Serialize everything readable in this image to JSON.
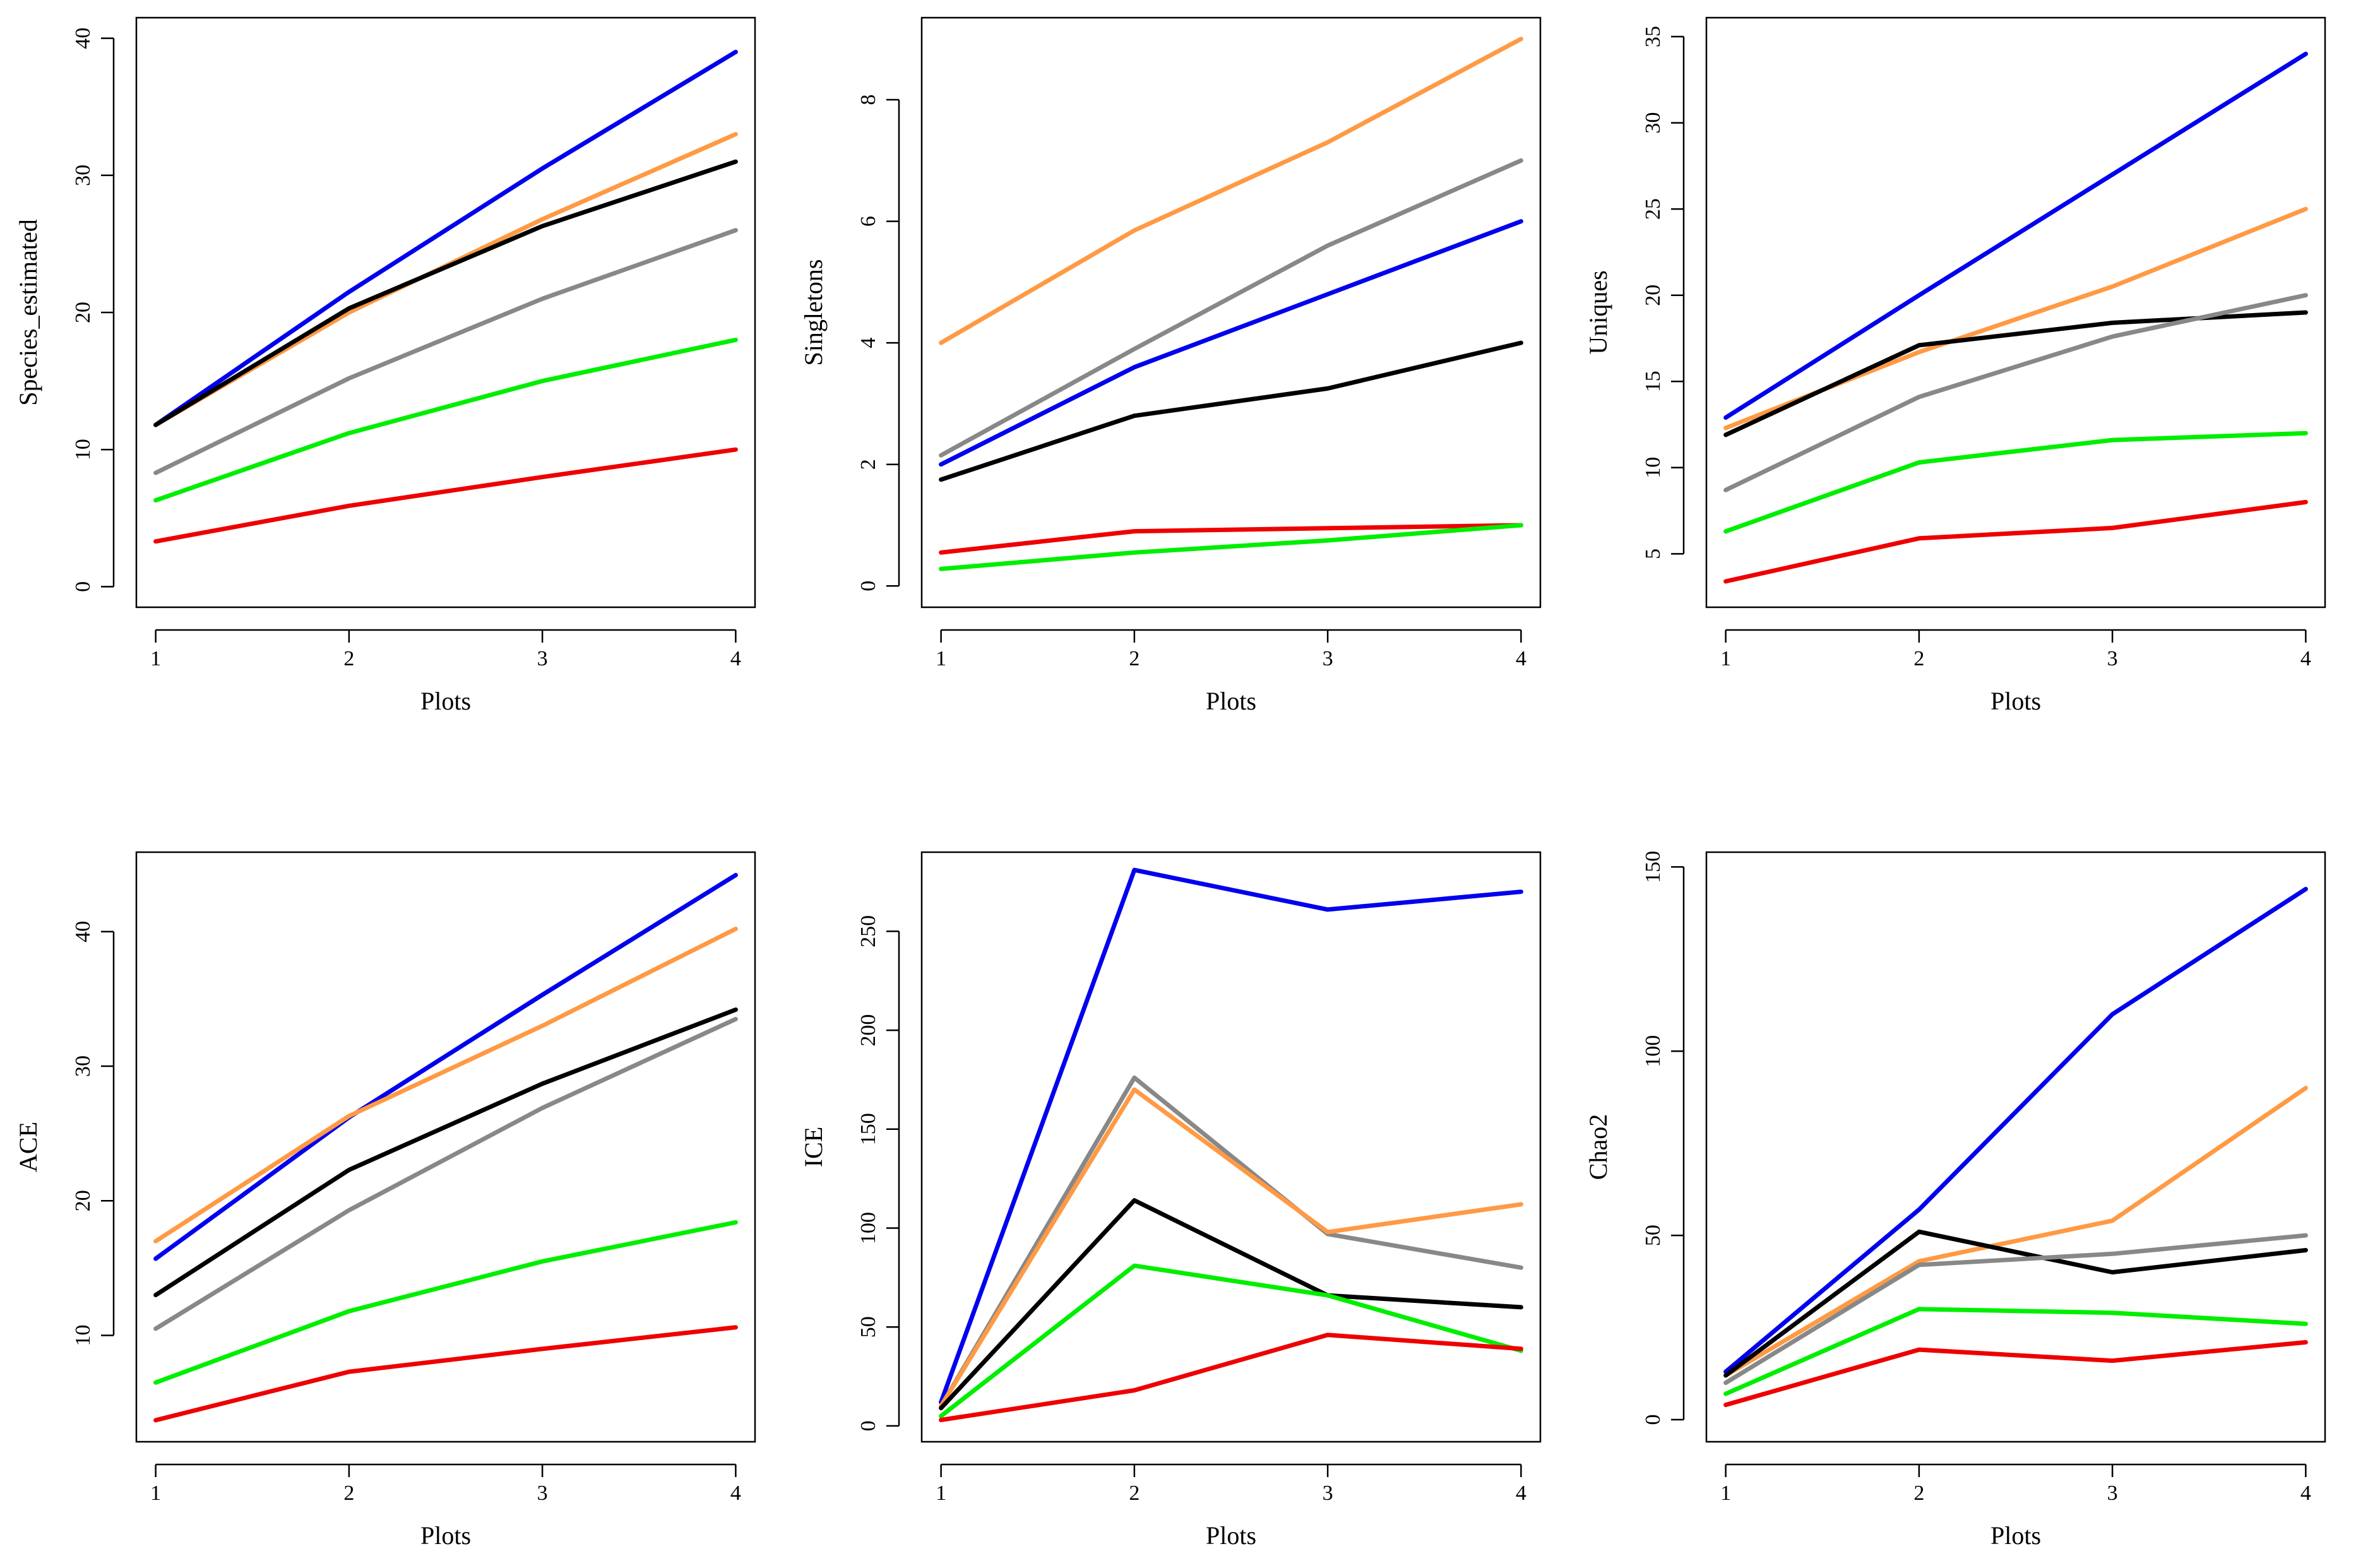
{
  "colors": {
    "blue": "#0000ee",
    "orange": "#ff9a44",
    "black": "#000000",
    "gray": "#888888",
    "green": "#00ee00",
    "red": "#ee0000"
  },
  "chart_data": [
    {
      "type": "line",
      "xlabel": "Plots",
      "ylabel": "Species_estimated",
      "x": [
        1,
        2,
        3,
        4
      ],
      "xlim": [
        0.9,
        4.1
      ],
      "ylim": [
        -1.5,
        41.5
      ],
      "yticks": [
        0,
        10,
        20,
        30,
        40
      ],
      "series": [
        {
          "color": "blue",
          "values": [
            11.8,
            21.5,
            30.5,
            39
          ]
        },
        {
          "color": "orange",
          "values": [
            11.8,
            20.0,
            26.8,
            33
          ]
        },
        {
          "color": "black",
          "values": [
            11.8,
            20.3,
            26.3,
            31
          ]
        },
        {
          "color": "gray",
          "values": [
            8.3,
            15.2,
            21.0,
            26
          ]
        },
        {
          "color": "green",
          "values": [
            6.3,
            11.2,
            15.0,
            18
          ]
        },
        {
          "color": "red",
          "values": [
            3.3,
            5.9,
            8.0,
            10
          ]
        }
      ]
    },
    {
      "type": "line",
      "xlabel": "Plots",
      "ylabel": "Singletons",
      "x": [
        1,
        2,
        3,
        4
      ],
      "xlim": [
        0.9,
        4.1
      ],
      "ylim": [
        -0.35,
        9.35
      ],
      "yticks": [
        0,
        2,
        4,
        6,
        8
      ],
      "series": [
        {
          "color": "orange",
          "values": [
            4.0,
            5.85,
            7.3,
            9.0
          ]
        },
        {
          "color": "gray",
          "values": [
            2.15,
            3.9,
            5.6,
            7.0
          ]
        },
        {
          "color": "blue",
          "values": [
            2.0,
            3.6,
            4.8,
            6.0
          ]
        },
        {
          "color": "black",
          "values": [
            1.75,
            2.8,
            3.25,
            4.0
          ]
        },
        {
          "color": "red",
          "values": [
            0.55,
            0.9,
            0.95,
            1.0
          ]
        },
        {
          "color": "green",
          "values": [
            0.28,
            0.55,
            0.75,
            1.0
          ]
        }
      ]
    },
    {
      "type": "line",
      "xlabel": "Plots",
      "ylabel": "Uniques",
      "x": [
        1,
        2,
        3,
        4
      ],
      "xlim": [
        0.9,
        4.1
      ],
      "ylim": [
        1.9,
        36.1
      ],
      "yticks": [
        5,
        10,
        15,
        20,
        25,
        30,
        35
      ],
      "series": [
        {
          "color": "blue",
          "values": [
            12.9,
            20.0,
            27.0,
            34.0
          ]
        },
        {
          "color": "orange",
          "values": [
            12.3,
            16.7,
            20.5,
            25.0
          ]
        },
        {
          "color": "black",
          "values": [
            11.9,
            17.1,
            18.4,
            19.0
          ]
        },
        {
          "color": "gray",
          "values": [
            8.7,
            14.1,
            17.6,
            20.0
          ]
        },
        {
          "color": "green",
          "values": [
            6.3,
            10.3,
            11.6,
            12.0
          ]
        },
        {
          "color": "red",
          "values": [
            3.4,
            5.9,
            6.5,
            8.0
          ]
        }
      ]
    },
    {
      "type": "line",
      "xlabel": "Plots",
      "ylabel": "ACE",
      "x": [
        1,
        2,
        3,
        4
      ],
      "xlim": [
        0.9,
        4.1
      ],
      "ylim": [
        2.1,
        45.9
      ],
      "yticks": [
        10,
        20,
        30,
        40
      ],
      "series": [
        {
          "color": "blue",
          "values": [
            15.7,
            26.2,
            35.3,
            44.2
          ]
        },
        {
          "color": "orange",
          "values": [
            17.0,
            26.3,
            33.0,
            40.2
          ]
        },
        {
          "color": "black",
          "values": [
            13.0,
            22.3,
            28.7,
            34.2
          ]
        },
        {
          "color": "gray",
          "values": [
            10.5,
            19.3,
            26.9,
            33.5
          ]
        },
        {
          "color": "green",
          "values": [
            6.5,
            11.8,
            15.5,
            18.4
          ]
        },
        {
          "color": "red",
          "values": [
            3.7,
            7.3,
            9.0,
            10.6
          ]
        }
      ]
    },
    {
      "type": "line",
      "xlabel": "Plots",
      "ylabel": "ICE",
      "x": [
        1,
        2,
        3,
        4
      ],
      "xlim": [
        0.9,
        4.1
      ],
      "ylim": [
        -8,
        290
      ],
      "yticks": [
        0,
        50,
        100,
        150,
        200,
        250
      ],
      "series": [
        {
          "color": "blue",
          "values": [
            12,
            281,
            261,
            270
          ]
        },
        {
          "color": "gray",
          "values": [
            10,
            176,
            97,
            80
          ]
        },
        {
          "color": "orange",
          "values": [
            10,
            170,
            98,
            112
          ]
        },
        {
          "color": "black",
          "values": [
            9,
            114,
            66,
            60
          ]
        },
        {
          "color": "green",
          "values": [
            5,
            81,
            66,
            38
          ]
        },
        {
          "color": "red",
          "values": [
            3,
            18,
            46,
            39
          ]
        }
      ]
    },
    {
      "type": "line",
      "xlabel": "Plots",
      "ylabel": "Chao2",
      "x": [
        1,
        2,
        3,
        4
      ],
      "xlim": [
        0.9,
        4.1
      ],
      "ylim": [
        -6,
        154
      ],
      "yticks": [
        0,
        50,
        100,
        150
      ],
      "series": [
        {
          "color": "blue",
          "values": [
            13,
            57,
            110,
            144
          ]
        },
        {
          "color": "orange",
          "values": [
            12,
            43,
            54,
            90
          ]
        },
        {
          "color": "black",
          "values": [
            12,
            51,
            40,
            46
          ]
        },
        {
          "color": "gray",
          "values": [
            10,
            42,
            45,
            50
          ]
        },
        {
          "color": "green",
          "values": [
            7,
            30,
            29,
            26
          ]
        },
        {
          "color": "red",
          "values": [
            4,
            19,
            16,
            21
          ]
        }
      ]
    }
  ]
}
